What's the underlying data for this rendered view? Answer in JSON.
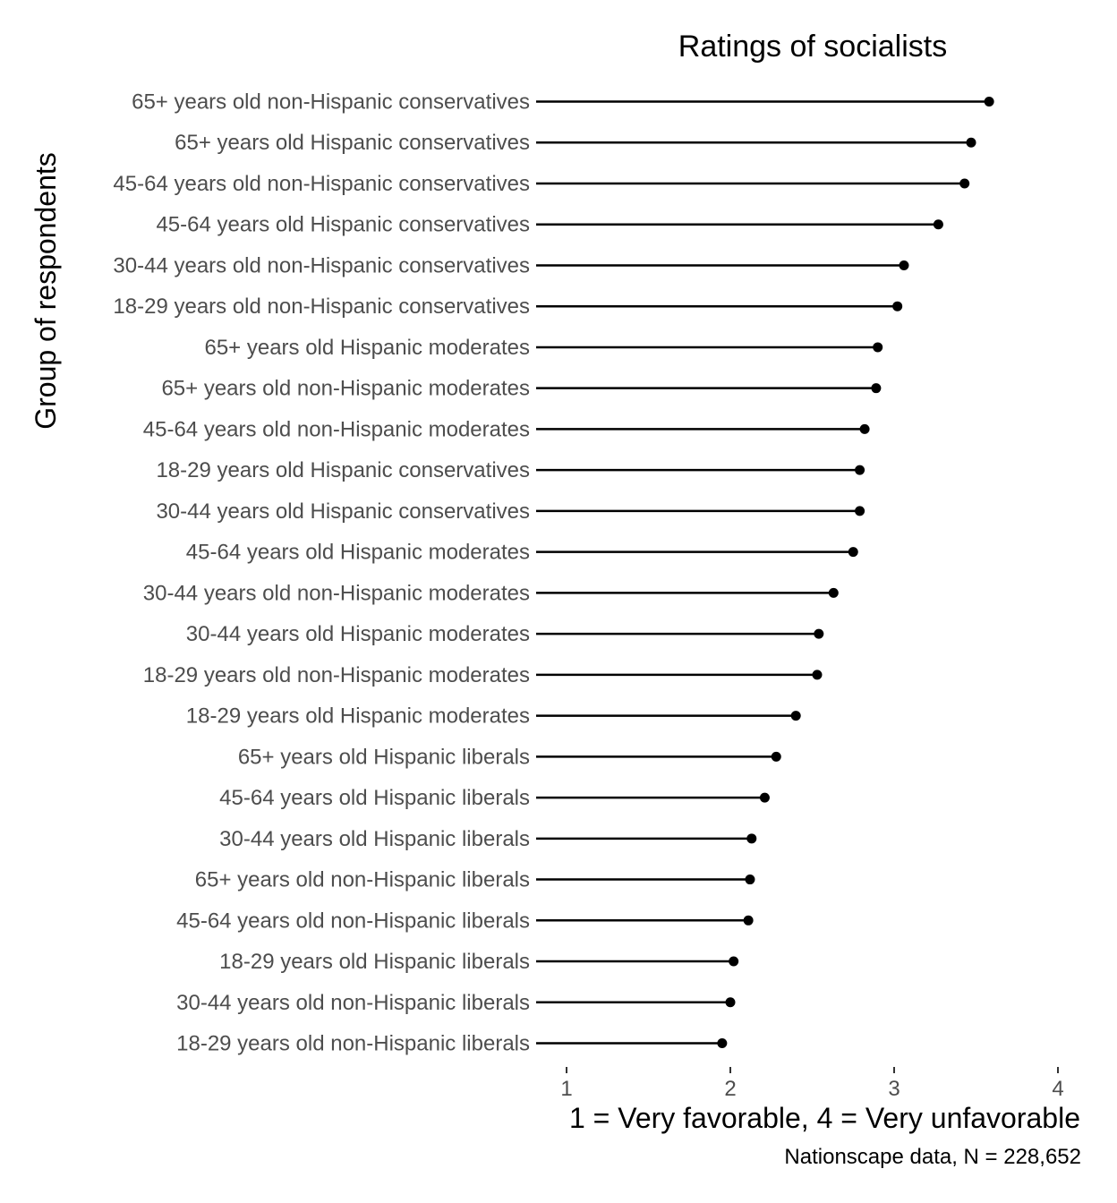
{
  "chart_data": {
    "type": "lollipop",
    "title": "Ratings of socialists",
    "xlabel": "1 = Very favorable, 4 = Very unfavorable",
    "ylabel": "Group of respondents",
    "caption": "Nationscape data, N = 228,652",
    "xlim": [
      1,
      4
    ],
    "x_ticks": [
      "1",
      "2",
      "3",
      "4"
    ],
    "grid": false,
    "colors": {
      "line": "#000000",
      "point": "#000000",
      "labels": "#4d4d4d"
    },
    "categories": [
      "65+ years old non-Hispanic conservatives",
      "65+ years old Hispanic conservatives",
      "45-64 years old non-Hispanic conservatives",
      "45-64 years old Hispanic conservatives",
      "30-44 years old non-Hispanic conservatives",
      "18-29 years old non-Hispanic conservatives",
      "65+ years old Hispanic moderates",
      "65+ years old non-Hispanic moderates",
      "45-64 years old non-Hispanic moderates",
      "18-29 years old Hispanic conservatives",
      "30-44 years old Hispanic conservatives",
      "45-64 years old Hispanic moderates",
      "30-44 years old non-Hispanic moderates",
      "30-44 years old Hispanic moderates",
      "18-29 years old non-Hispanic moderates",
      "18-29 years old Hispanic moderates",
      "65+ years old Hispanic liberals",
      "45-64 years old Hispanic liberals",
      "30-44 years old Hispanic liberals",
      "65+ years old non-Hispanic liberals",
      "45-64 years old non-Hispanic liberals",
      "18-29 years old Hispanic liberals",
      "30-44 years old non-Hispanic liberals",
      "18-29 years old non-Hispanic liberals"
    ],
    "values": [
      3.58,
      3.47,
      3.43,
      3.27,
      3.06,
      3.02,
      2.9,
      2.89,
      2.82,
      2.79,
      2.79,
      2.75,
      2.63,
      2.54,
      2.53,
      2.4,
      2.28,
      2.21,
      2.13,
      2.12,
      2.11,
      2.02,
      2.0,
      1.95
    ]
  }
}
